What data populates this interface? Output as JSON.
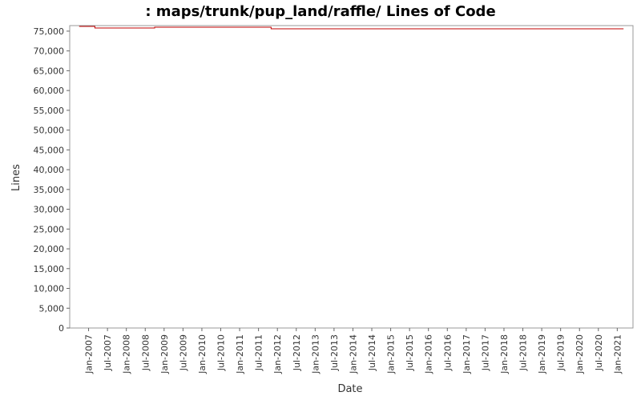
{
  "chart_data": {
    "type": "step",
    "title": ": maps/trunk/pup_land/raffle/ Lines of Code",
    "x_label": "Date",
    "y_label": "Lines",
    "x": [
      "2006-10",
      "2007-03",
      "2008-10",
      "2011-11",
      "2021-03"
    ],
    "series": [
      {
        "name": "Lines",
        "color": "#c00000",
        "values": [
          76200,
          75800,
          76000,
          75600,
          75600
        ]
      }
    ],
    "xlim": [
      "2006-07",
      "2021-06"
    ],
    "xticks": [
      {
        "value": "2007-01",
        "label": "Jan-2007"
      },
      {
        "value": "2007-07",
        "label": "Jul-2007"
      },
      {
        "value": "2008-01",
        "label": "Jan-2008"
      },
      {
        "value": "2008-07",
        "label": "Jul-2008"
      },
      {
        "value": "2009-01",
        "label": "Jan-2009"
      },
      {
        "value": "2009-07",
        "label": "Jul-2009"
      },
      {
        "value": "2010-01",
        "label": "Jan-2010"
      },
      {
        "value": "2010-07",
        "label": "Jul-2010"
      },
      {
        "value": "2011-01",
        "label": "Jan-2011"
      },
      {
        "value": "2011-07",
        "label": "Jul-2011"
      },
      {
        "value": "2012-01",
        "label": "Jan-2012"
      },
      {
        "value": "2012-07",
        "label": "Jul-2012"
      },
      {
        "value": "2013-01",
        "label": "Jan-2013"
      },
      {
        "value": "2013-07",
        "label": "Jul-2013"
      },
      {
        "value": "2014-01",
        "label": "Jan-2014"
      },
      {
        "value": "2014-07",
        "label": "Jul-2014"
      },
      {
        "value": "2015-01",
        "label": "Jan-2015"
      },
      {
        "value": "2015-07",
        "label": "Jul-2015"
      },
      {
        "value": "2016-01",
        "label": "Jan-2016"
      },
      {
        "value": "2016-07",
        "label": "Jul-2016"
      },
      {
        "value": "2017-01",
        "label": "Jan-2017"
      },
      {
        "value": "2017-07",
        "label": "Jul-2017"
      },
      {
        "value": "2018-01",
        "label": "Jan-2018"
      },
      {
        "value": "2018-07",
        "label": "Jul-2018"
      },
      {
        "value": "2019-01",
        "label": "Jan-2019"
      },
      {
        "value": "2019-07",
        "label": "Jul-2019"
      },
      {
        "value": "2020-01",
        "label": "Jan-2020"
      },
      {
        "value": "2020-07",
        "label": "Jul-2020"
      },
      {
        "value": "2021-01",
        "label": "Jan-2021"
      }
    ],
    "ylim": [
      0,
      76400
    ],
    "yticks": [
      0,
      {
        "value": 5000,
        "label": "5,000"
      },
      {
        "value": 10000,
        "label": "10,000"
      },
      {
        "value": 15000,
        "label": "15,000"
      },
      {
        "value": 20000,
        "label": "20,000"
      },
      {
        "value": 25000,
        "label": "25,000"
      },
      {
        "value": 30000,
        "label": "30,000"
      },
      {
        "value": 35000,
        "label": "35,000"
      },
      {
        "value": 40000,
        "label": "40,000"
      },
      {
        "value": 45000,
        "label": "45,000"
      },
      {
        "value": 50000,
        "label": "50,000"
      },
      {
        "value": 55000,
        "label": "55,000"
      },
      {
        "value": 60000,
        "label": "60,000"
      },
      {
        "value": 65000,
        "label": "65,000"
      },
      {
        "value": 70000,
        "label": "70,000"
      },
      {
        "value": 75000,
        "label": "75,000"
      }
    ]
  }
}
